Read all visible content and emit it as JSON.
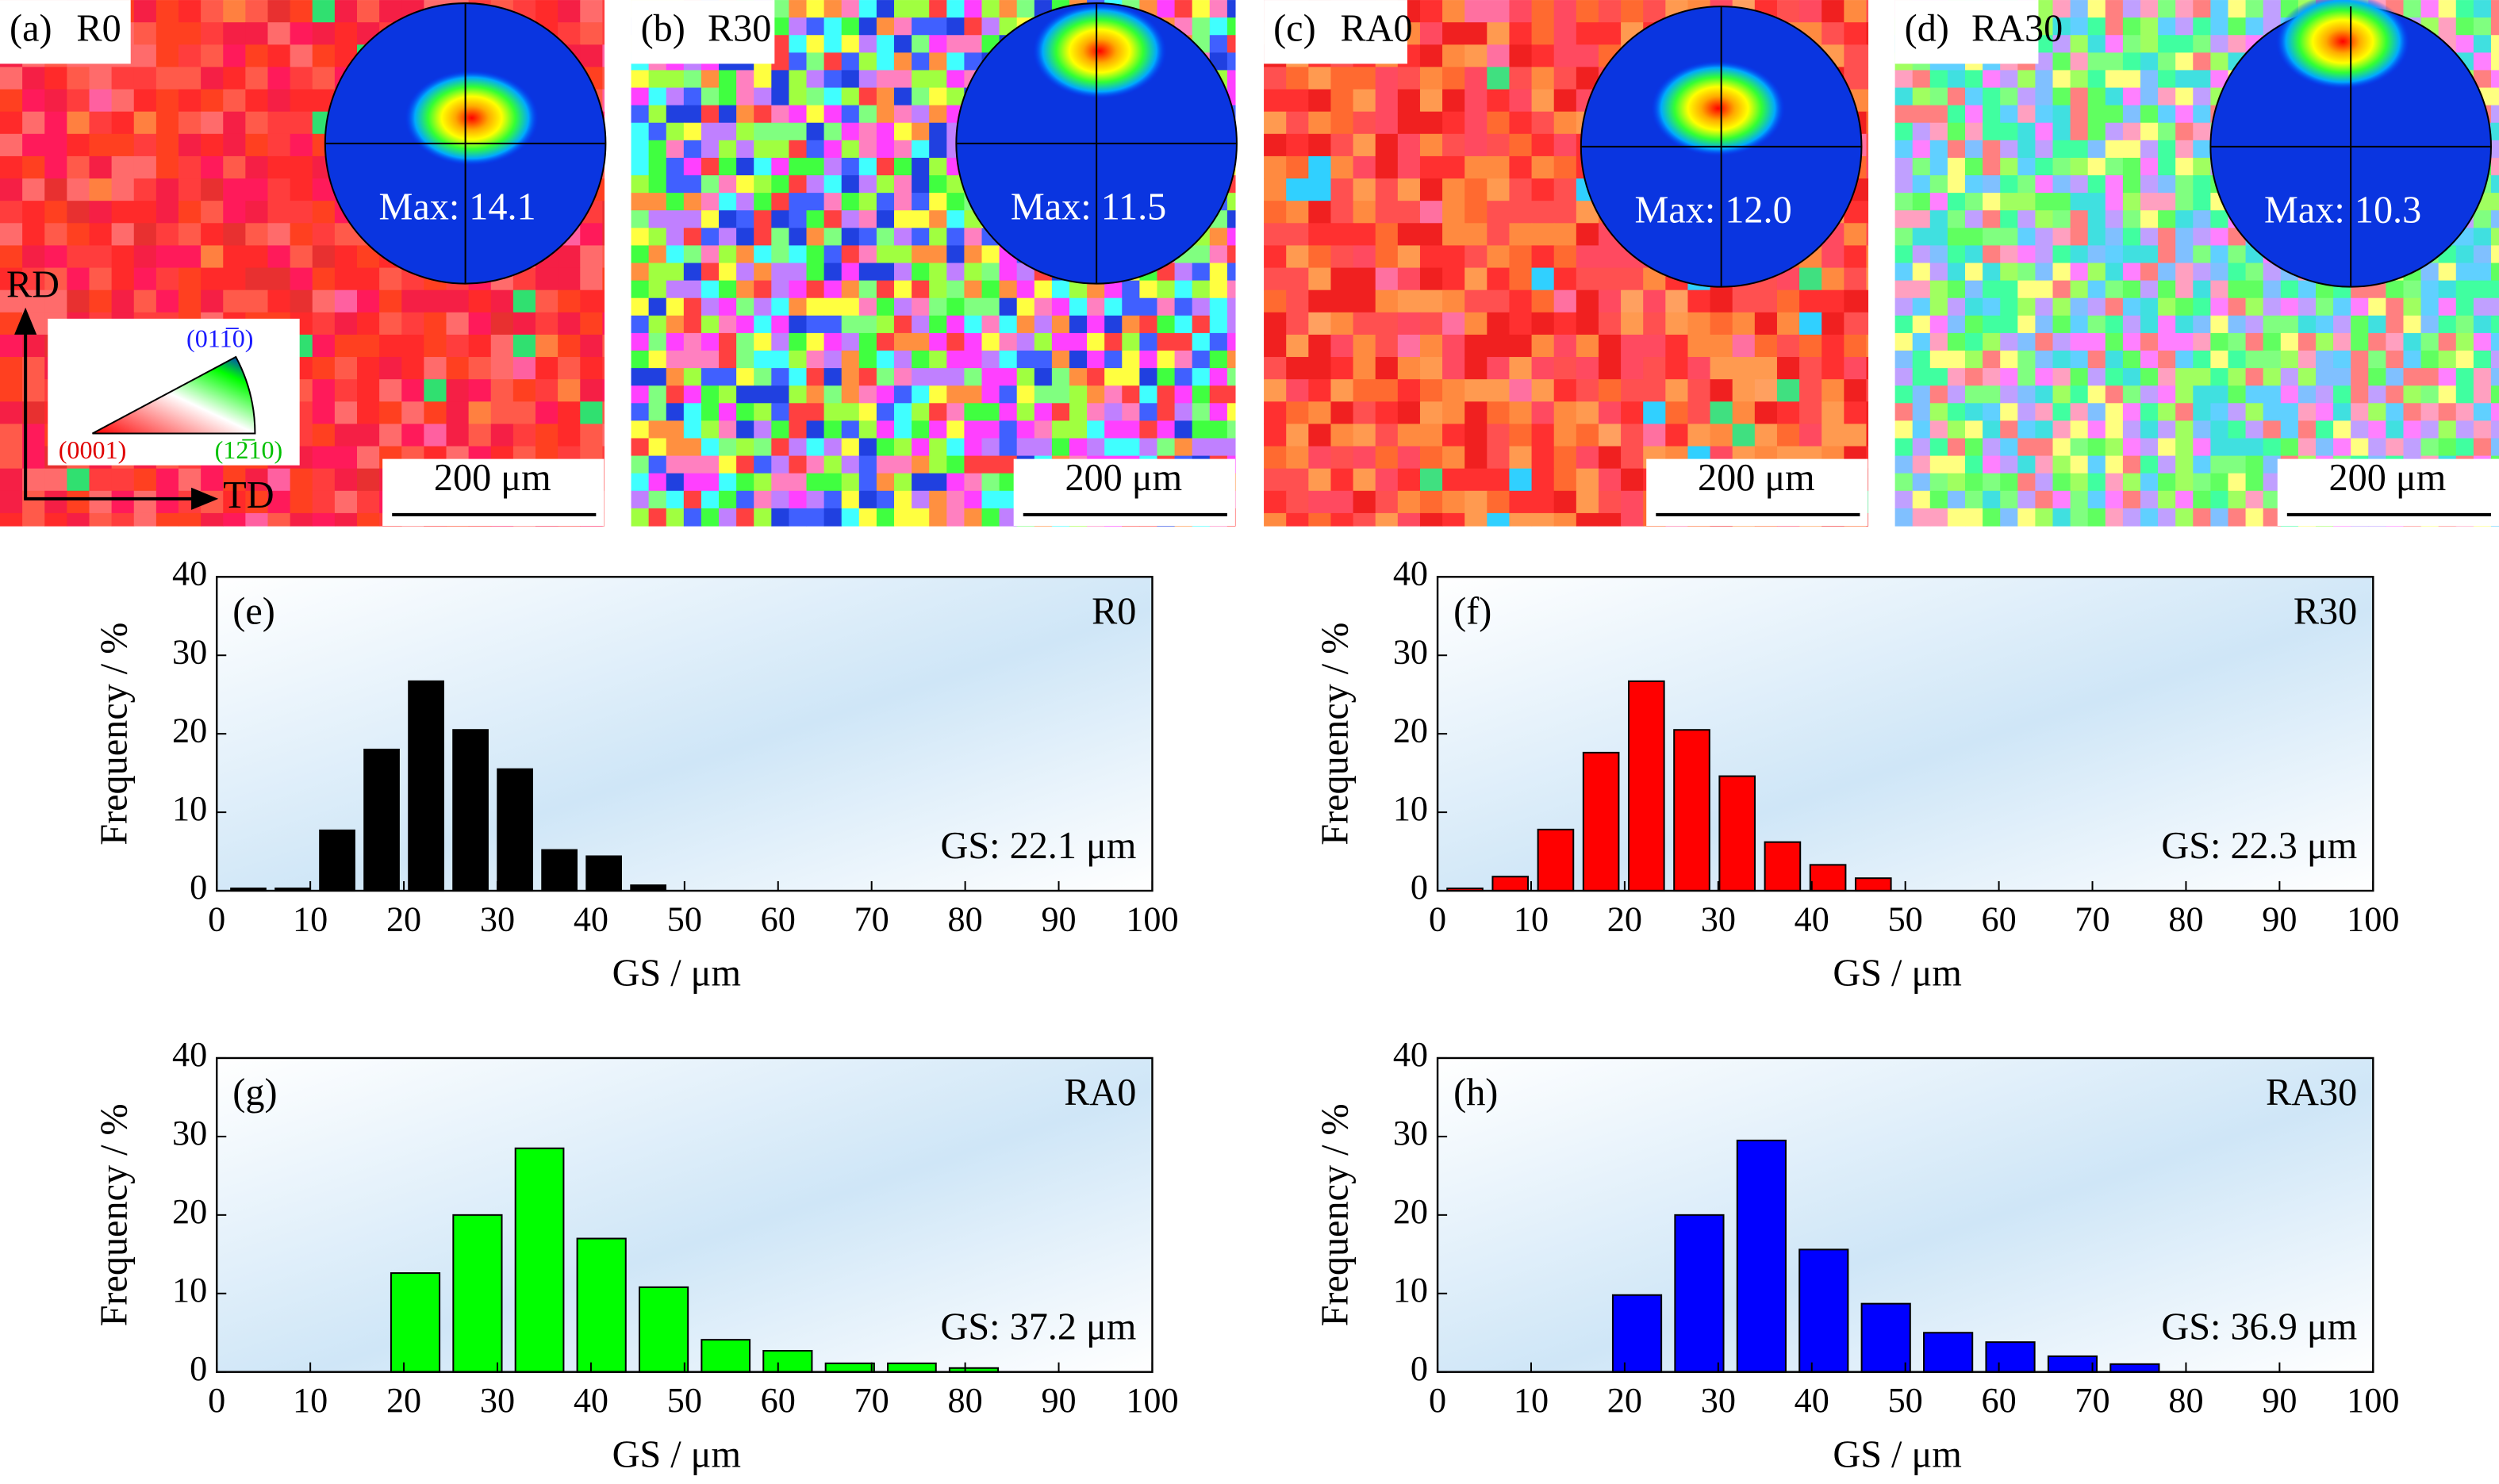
{
  "maps": [
    {
      "panel": "(a)",
      "sample": "R0",
      "max": "Max: 14.1",
      "scale": "200 μm"
    },
    {
      "panel": "(b)",
      "sample": "R30",
      "max": "Max: 11.5",
      "scale": "200 μm"
    },
    {
      "panel": "(c)",
      "sample": "RA0",
      "max": "Max: 12.0",
      "scale": "200 μm"
    },
    {
      "panel": "(d)",
      "sample": "RA30",
      "max": "Max: 10.3",
      "scale": "200 μm"
    }
  ],
  "ipf_legend": {
    "rd": "RD",
    "td": "TD",
    "basal": "(0001)",
    "prism1": "(011̅0)",
    "prism2": "(12̅10)"
  },
  "chart_data": [
    {
      "type": "histogram",
      "panel": "(e)",
      "label": "R0",
      "annotation": "GS: 22.1 μm",
      "xlabel": "GS / μm",
      "ylabel": "Frequency / %",
      "color": "#000000",
      "bins": [
        1,
        5.75,
        10.5,
        15.25,
        20,
        24.75,
        29.5,
        34.25,
        39,
        43.75,
        48.5
      ],
      "values": [
        0.3,
        0.3,
        7.7,
        18,
        26.7,
        20.5,
        15.5,
        5.2,
        4.4,
        0.7
      ],
      "xlim": [
        0,
        100
      ],
      "ylim": [
        0,
        40
      ],
      "xticks": [
        0,
        10,
        20,
        30,
        40,
        50,
        60,
        70,
        80,
        90,
        100
      ],
      "yticks": [
        0,
        10,
        20,
        30,
        40
      ]
    },
    {
      "type": "histogram",
      "panel": "(f)",
      "label": "R30",
      "annotation": "GS: 22.3 μm",
      "xlabel": "GS / μm",
      "ylabel": "Frequency / %",
      "color": "#ff0000",
      "bins": [
        0.5,
        5.35,
        10.2,
        15.05,
        19.9,
        24.75,
        29.6,
        34.45,
        39.3,
        44.15,
        49
      ],
      "values": [
        0.3,
        1.8,
        7.8,
        17.6,
        26.7,
        20.5,
        14.6,
        6.2,
        3.3,
        1.6
      ],
      "xlim": [
        0,
        100
      ],
      "ylim": [
        0,
        40
      ],
      "xticks": [
        0,
        10,
        20,
        30,
        40,
        50,
        60,
        70,
        80,
        90,
        100
      ],
      "yticks": [
        0,
        10,
        20,
        30,
        40
      ]
    },
    {
      "type": "histogram",
      "panel": "(g)",
      "label": "RA0",
      "annotation": "GS: 37.2 μm",
      "xlabel": "GS / μm",
      "ylabel": "Frequency / %",
      "color": "#00ff00",
      "bins": [
        17.9,
        24.55,
        31.2,
        37.8,
        44.45,
        51.1,
        57.7,
        64.35,
        71,
        77.6,
        84.25
      ],
      "values": [
        12.6,
        20,
        28.5,
        17,
        10.8,
        4.1,
        2.7,
        1.1,
        1.1,
        0.5
      ],
      "xlim": [
        0,
        100
      ],
      "ylim": [
        0,
        40
      ],
      "xticks": [
        0,
        10,
        20,
        30,
        40,
        50,
        60,
        70,
        80,
        90,
        100
      ],
      "yticks": [
        0,
        10,
        20,
        30,
        40
      ]
    },
    {
      "type": "histogram",
      "panel": "(h)",
      "label": "RA30",
      "annotation": "GS: 36.9 μm",
      "xlabel": "GS / μm",
      "ylabel": "Frequency / %",
      "color": "#0000ff",
      "bins": [
        18,
        24.65,
        31.3,
        37.95,
        44.6,
        51.25,
        57.9,
        64.55,
        71.2,
        77.85
      ],
      "values": [
        9.8,
        20,
        29.5,
        15.6,
        8.7,
        5,
        3.8,
        2,
        1
      ],
      "xlim": [
        0,
        100
      ],
      "ylim": [
        0,
        40
      ],
      "xticks": [
        0,
        10,
        20,
        30,
        40,
        50,
        60,
        70,
        80,
        90,
        100
      ],
      "yticks": [
        0,
        10,
        20,
        30,
        40
      ]
    }
  ]
}
